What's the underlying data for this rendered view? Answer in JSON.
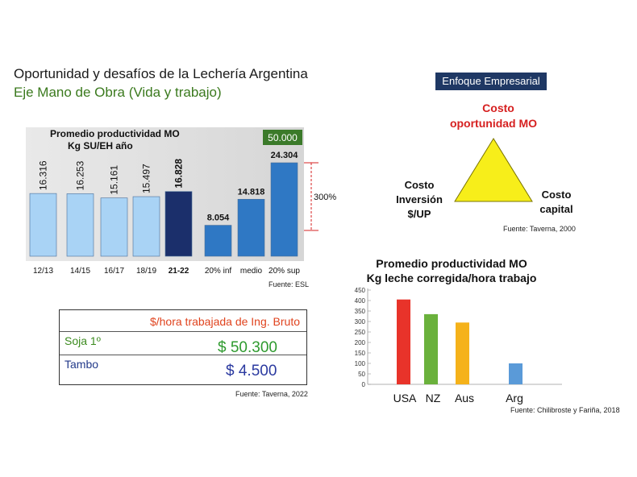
{
  "header": {
    "title": "Oportunidad y desafíos de la Lechería Argentina",
    "subtitle": "Eje Mano de Obra (Vida y trabajo)"
  },
  "chart_data": [
    {
      "type": "bar",
      "title": "Promedio productividad MO",
      "subtitle": "Kg SU/EH año",
      "categories": [
        "12/13",
        "14/15",
        "16/17",
        "18/19",
        "21-22",
        "20% inf",
        "medio",
        "20% sup"
      ],
      "values": [
        16316,
        16253,
        15161,
        15497,
        16828,
        8054,
        14818,
        24304
      ],
      "value_labels": [
        "16.316",
        "16.253",
        "15.161",
        "15.497",
        "16.828",
        "8.054",
        "14.818",
        "24.304"
      ],
      "colors": [
        "#a9d3f5",
        "#a9d3f5",
        "#a9d3f5",
        "#a9d3f5",
        "#1b2f6b",
        "#2f78c4",
        "#2f78c4",
        "#2f78c4"
      ],
      "ylim": [
        0,
        26000
      ],
      "annotation_box": "50.000",
      "annotation_box_color": "#3b7a2a",
      "bracket_label": "300%",
      "source": "Fuente: ESL"
    },
    {
      "type": "bar",
      "title": "Promedio productividad MO",
      "subtitle": "Kg leche corregida/hora trabajo",
      "categories": [
        "USA",
        "NZ",
        "Aus",
        "Arg"
      ],
      "values": [
        405,
        335,
        295,
        100
      ],
      "colors": [
        "#e8332a",
        "#6ab13c",
        "#f5b21a",
        "#5a9ad8"
      ],
      "yticks": [
        0,
        50,
        100,
        150,
        200,
        250,
        300,
        350,
        400,
        450
      ],
      "ylim": [
        0,
        450
      ],
      "source": "Fuente: Chilibroste y Fariña, 2018"
    }
  ],
  "enfoque": {
    "label": "Enfoque Empresarial",
    "top": [
      "Costo",
      "oportunidad MO"
    ],
    "left": [
      "Costo",
      "Inversión",
      "$/UP"
    ],
    "right": [
      "Costo",
      "capital"
    ],
    "source": "Fuente: Taverna, 2000",
    "triangle_color": "#f7ee1a",
    "top_color": "#d62020"
  },
  "table": {
    "header": "$/hora trabajada de Ing. Bruto",
    "rows": [
      {
        "label": "Soja 1º",
        "value": "$ 50.300"
      },
      {
        "label": "Tambo",
        "value": "$ 4.500"
      }
    ],
    "source": "Fuente: Taverna, 2022"
  }
}
